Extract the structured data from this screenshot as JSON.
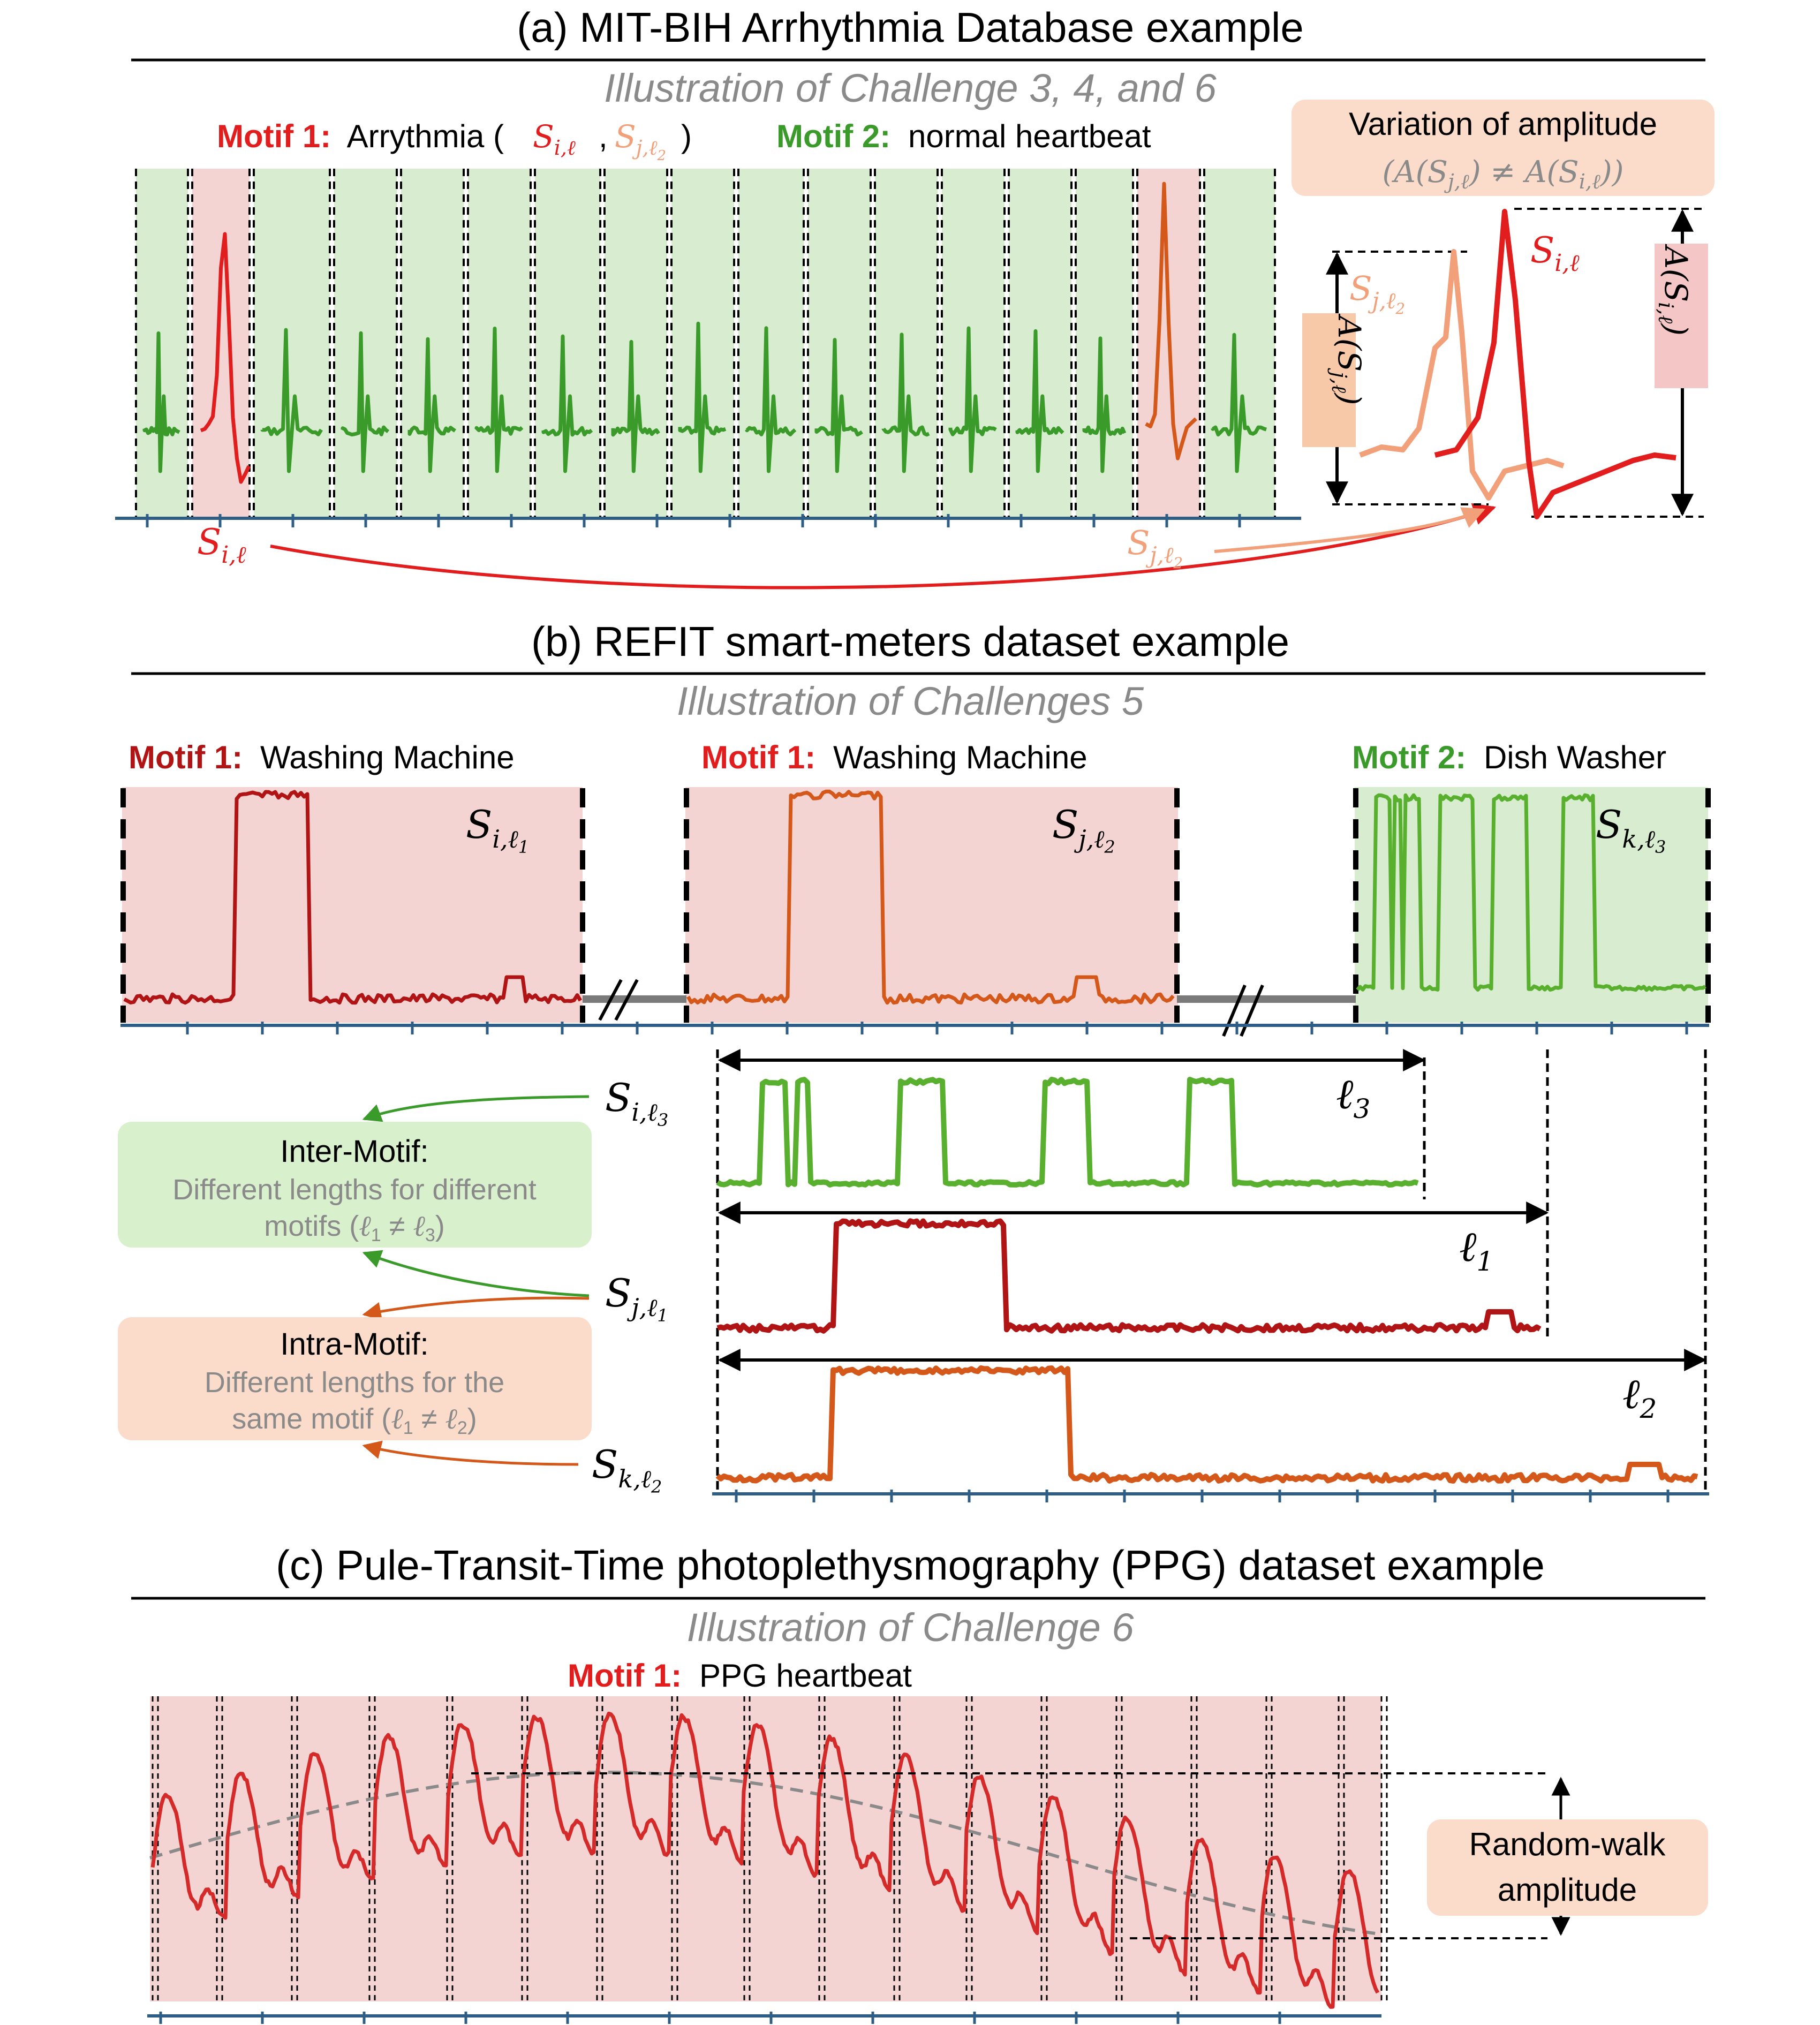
{
  "colors": {
    "red": "#e11d1d",
    "darkred": "#b11414",
    "salmon": "#f2a07a",
    "orange": "#d4581a",
    "green": "#3a9a2a",
    "lightgreen": "#58b02e",
    "gray": "#8a8a8a",
    "bg_red": "#f4d3d3",
    "bg_green": "#d8edd0",
    "box_orange": "#fbdcca",
    "box_green": "#d8f0cc",
    "axis": "#2e5e86"
  },
  "panel_a": {
    "title": "(a) MIT-BIH Arrhythmia Database example",
    "subtitle": "Illustration of Challenge 3, 4, and 6",
    "motif1_prefix": "Motif 1:",
    "motif1_text": "Arrythmia (",
    "motif1_close": ")",
    "motif2_prefix": "Motif 2:",
    "motif2_text": "normal heartbeat",
    "box_title": "Variation of amplitude",
    "box_formula": "(A(Sj,ℓ) ≠ A(Si,ℓ))",
    "amp_label_j": "A(Sj,ℓ)",
    "amp_label_i": "A(Si,ℓ)",
    "label_si": "Si,ℓ",
    "label_sj": "Sj,ℓ2"
  },
  "panel_b": {
    "title": "(b) REFIT smart-meters dataset example",
    "subtitle": "Illustration of Challenges 5",
    "motif1_prefix": "Motif 1:",
    "motif1_text": "Washing Machine",
    "motif2_prefix": "Motif 2:",
    "motif2_text": "Dish Washer",
    "seg_labels": [
      "Si,ℓ1",
      "Sj,ℓ2",
      "Sk,ℓ3"
    ],
    "row_labels": [
      "Si,ℓ3",
      "Sj,ℓ1",
      "Sk,ℓ2"
    ],
    "len_labels": [
      "ℓ3",
      "ℓ1",
      "ℓ2"
    ],
    "inter_title": "Inter-Motif:",
    "inter_line1": "Different lengths for different",
    "inter_line2": "motifs (ℓ1 ≠ ℓ3)",
    "intra_title": "Intra-Motif:",
    "intra_line1": "Different lengths for the",
    "intra_line2": "same motif (ℓ1 ≠ ℓ2)"
  },
  "panel_c": {
    "title": "(c) Pule-Transit-Time photoplethysmography (PPG) dataset  example",
    "subtitle": "Illustration of Challenge 6",
    "motif1_prefix": "Motif 1:",
    "motif1_text": "PPG heartbeat",
    "box_line1": "Random-walk",
    "box_line2": "amplitude"
  }
}
